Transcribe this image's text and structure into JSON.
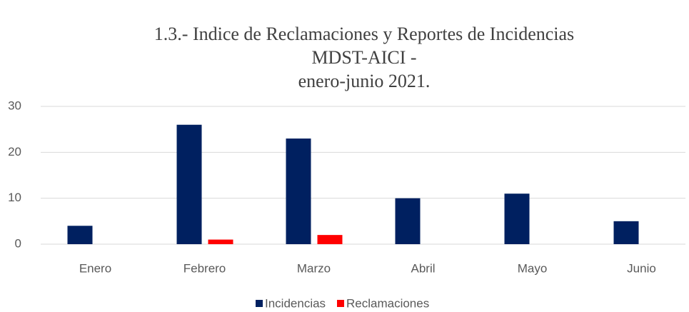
{
  "chart_data": {
    "type": "bar",
    "title": [
      "1.3.- Indice de Reclamaciones y Reportes de Incidencias",
      "MDST-AICI -",
      "enero-junio 2021."
    ],
    "categories": [
      "Enero",
      "Febrero",
      "Marzo",
      "Abril",
      "Mayo",
      "Junio"
    ],
    "series": [
      {
        "name": "Incidencias",
        "color": "#002060",
        "values": [
          4,
          26,
          23,
          10,
          11,
          5
        ]
      },
      {
        "name": "Reclamaciones",
        "color": "#ff0000",
        "values": [
          0,
          1,
          2,
          0,
          0,
          0
        ]
      }
    ],
    "ylim": [
      0,
      30
    ],
    "yticks": [
      0,
      10,
      20,
      30
    ],
    "grid": true,
    "legend": "bottom"
  }
}
